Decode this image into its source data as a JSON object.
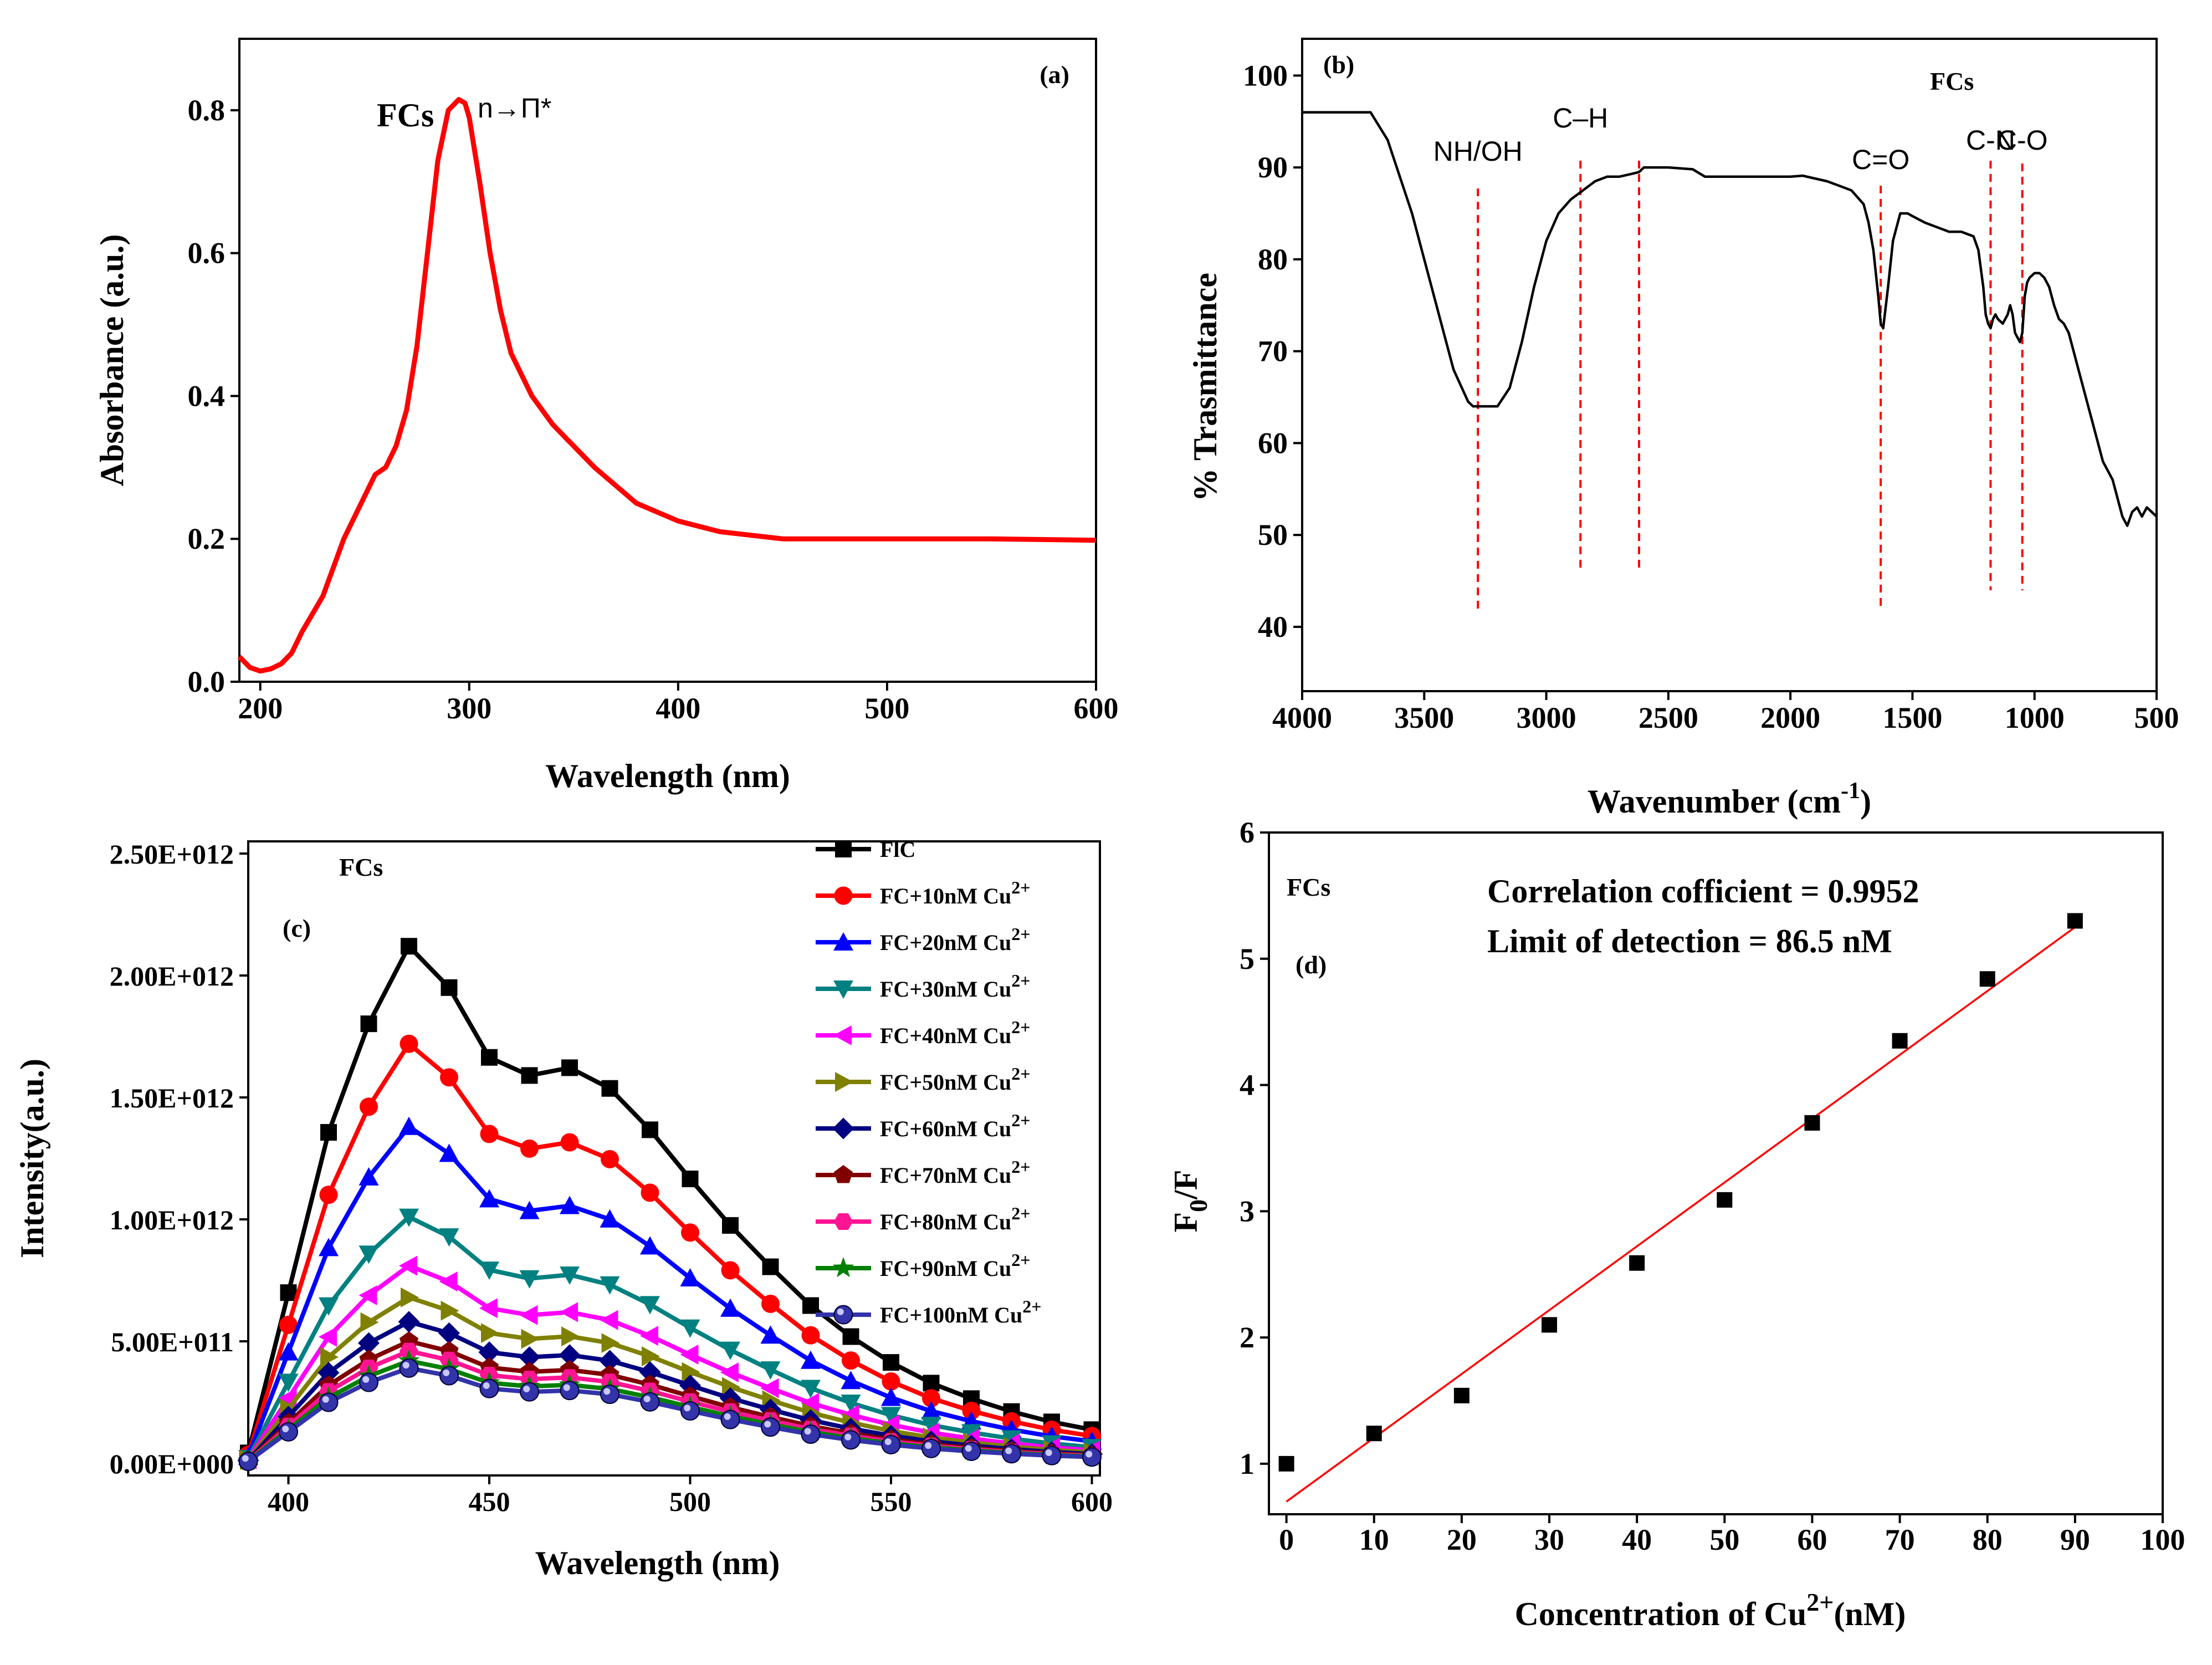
{
  "chart_data": [
    {
      "type": "line",
      "panel": "(a)",
      "title": "",
      "sample_label": "FCs",
      "peak_label": "n→Π*",
      "xlabel": "Wavelength (nm)",
      "ylabel": "Absorbance (a.u.)",
      "xlim": [
        190,
        600
      ],
      "ylim": [
        0,
        0.9
      ],
      "xticks": [
        200,
        300,
        400,
        500,
        600
      ],
      "yticks": [
        0.0,
        0.2,
        0.4,
        0.6,
        0.8
      ],
      "xtick_labels": [
        "200",
        "300",
        "400",
        "500",
        "600"
      ],
      "ytick_labels": [
        "0.0",
        "0.2",
        "0.4",
        "0.6",
        "0.8"
      ],
      "color": "#ff0000",
      "series": [
        {
          "name": "FCs",
          "x": [
            190,
            195,
            200,
            205,
            210,
            215,
            220,
            230,
            240,
            250,
            255,
            260,
            265,
            270,
            275,
            280,
            285,
            290,
            295,
            298,
            300,
            305,
            310,
            315,
            320,
            330,
            340,
            350,
            360,
            380,
            400,
            420,
            450,
            500,
            550,
            600
          ],
          "y": [
            0.035,
            0.02,
            0.015,
            0.018,
            0.025,
            0.04,
            0.07,
            0.12,
            0.2,
            0.26,
            0.29,
            0.3,
            0.33,
            0.38,
            0.47,
            0.6,
            0.73,
            0.8,
            0.815,
            0.81,
            0.79,
            0.7,
            0.6,
            0.52,
            0.46,
            0.4,
            0.36,
            0.33,
            0.3,
            0.25,
            0.225,
            0.21,
            0.2,
            0.2,
            0.2,
            0.198
          ]
        }
      ]
    },
    {
      "type": "line",
      "panel": "(b)",
      "title": "",
      "sample_label": "FCs",
      "xlabel": "Wavenumber (cm",
      "xlabel_sup": "-1",
      "xlabel_end": ")",
      "ylabel": "% Trasmittance",
      "xlim": [
        4000,
        500
      ],
      "ylim": [
        33,
        104
      ],
      "xticks": [
        4000,
        3500,
        3000,
        2500,
        2000,
        1500,
        1000,
        500
      ],
      "yticks": [
        40,
        50,
        60,
        70,
        80,
        90,
        100
      ],
      "xtick_labels": [
        "4000",
        "3500",
        "3000",
        "2500",
        "2000",
        "1500",
        "1000",
        "500"
      ],
      "ytick_labels": [
        "40",
        "50",
        "60",
        "70",
        "80",
        "90",
        "100"
      ],
      "color": "#000000",
      "annotations": [
        {
          "label": "NH/OH",
          "x": 3280
        },
        {
          "label": "C–H",
          "x": 2860
        },
        {
          "label": "",
          "x": 2620
        },
        {
          "label": "C=O",
          "x": 1630
        },
        {
          "label": "C-N",
          "x": 1180
        },
        {
          "label": "C-O",
          "x": 1050
        }
      ],
      "series": [
        {
          "name": "FCs",
          "x": [
            4000,
            3900,
            3800,
            3720,
            3650,
            3550,
            3450,
            3380,
            3320,
            3300,
            3260,
            3200,
            3150,
            3100,
            3050,
            3000,
            2950,
            2900,
            2850,
            2800,
            2750,
            2700,
            2650,
            2620,
            2600,
            2500,
            2400,
            2350,
            2300,
            2200,
            2100,
            2000,
            1950,
            1900,
            1850,
            1800,
            1750,
            1700,
            1680,
            1660,
            1640,
            1630,
            1620,
            1600,
            1580,
            1550,
            1520,
            1500,
            1450,
            1400,
            1350,
            1300,
            1250,
            1230,
            1210,
            1200,
            1190,
            1180,
            1170,
            1160,
            1150,
            1130,
            1110,
            1100,
            1090,
            1080,
            1060,
            1050,
            1040,
            1030,
            1020,
            1000,
            980,
            960,
            940,
            920,
            900,
            880,
            860,
            840,
            820,
            800,
            780,
            760,
            740,
            720,
            700,
            680,
            660,
            640,
            620,
            600,
            580,
            560,
            540,
            520,
            500
          ],
          "y": [
            96,
            96,
            96,
            96,
            93,
            85,
            75,
            68,
            64.5,
            64,
            64,
            64,
            66,
            71,
            77,
            82,
            85,
            86.5,
            87.5,
            88.5,
            89,
            89,
            89.3,
            89.5,
            90,
            90,
            89.8,
            89,
            89,
            89,
            89,
            89,
            89.1,
            88.8,
            88.5,
            88,
            87.5,
            86,
            84,
            81,
            76,
            73,
            72.5,
            77,
            82,
            85,
            85,
            84.7,
            84,
            83.5,
            83,
            83,
            82.5,
            81,
            77,
            74,
            73,
            72.5,
            73.5,
            74,
            73.5,
            73,
            74,
            75,
            74,
            72,
            71,
            72,
            76,
            77.5,
            78,
            78.5,
            78.5,
            78,
            77,
            75,
            73.5,
            73,
            72,
            70,
            68,
            66,
            64,
            62,
            60,
            58,
            57,
            56,
            54,
            52,
            51,
            52.5,
            53,
            52,
            53,
            52.5,
            52
          ]
        }
      ]
    },
    {
      "type": "line",
      "panel": "(c)",
      "title": "",
      "sample_label": "FCs",
      "xlabel": "Wavelength (nm)",
      "ylabel": "Intensity(a.u.)",
      "xlim": [
        390,
        602
      ],
      "ylim": [
        -50000000000.0,
        2550000000000.0
      ],
      "xticks": [
        400,
        450,
        500,
        550,
        600
      ],
      "yticks": [
        0,
        500000000000.0,
        1000000000000.0,
        1500000000000.0,
        2000000000000.0,
        2500000000000.0
      ],
      "xtick_labels": [
        "400",
        "450",
        "500",
        "550",
        "600"
      ],
      "ytick_labels": [
        "0.00E+000",
        "5.00E+011",
        "1.00E+012",
        "1.50E+012",
        "2.00E+012",
        "2.50E+012"
      ],
      "x": [
        390,
        400,
        410,
        420,
        430,
        440,
        450,
        460,
        470,
        480,
        490,
        500,
        510,
        520,
        530,
        540,
        550,
        560,
        570,
        580,
        590,
        600
      ],
      "base_shape": [
        0.02,
        0.33,
        0.64,
        0.85,
        1.0,
        0.92,
        0.785,
        0.75,
        0.765,
        0.725,
        0.645,
        0.55,
        0.46,
        0.38,
        0.305,
        0.245,
        0.195,
        0.155,
        0.125,
        0.1,
        0.08,
        0.065
      ],
      "series": [
        {
          "name": "FlC",
          "label_main": "FlC",
          "label_sup": "",
          "peak": 2120000000000.0,
          "color": "#000000",
          "marker": "square"
        },
        {
          "name": "FC+10nM Cu2+",
          "label_main": "FC+10nM Cu",
          "label_sup": "2+",
          "peak": 1720000000000.0,
          "color": "#ff0000",
          "marker": "circle"
        },
        {
          "name": "FC+20nM Cu2+",
          "label_main": "FC+20nM Cu",
          "label_sup": "2+",
          "peak": 1380000000000.0,
          "color": "#0000ff",
          "marker": "triangle-up"
        },
        {
          "name": "FC+30nM Cu2+",
          "label_main": "FC+30nM Cu",
          "label_sup": "2+",
          "peak": 1010000000000.0,
          "color": "#008080",
          "marker": "triangle-down"
        },
        {
          "name": "FC+40nM Cu2+",
          "label_main": "FC+40nM Cu",
          "label_sup": "2+",
          "peak": 810000000000.0,
          "color": "#ff00ff",
          "marker": "triangle-left"
        },
        {
          "name": "FC+50nM Cu2+",
          "label_main": "FC+50nM Cu",
          "label_sup": "2+",
          "peak": 680000000000.0,
          "color": "#808000",
          "marker": "triangle-right"
        },
        {
          "name": "FC+60nM Cu2+",
          "label_main": "FC+60nM Cu",
          "label_sup": "2+",
          "peak": 580000000000.0,
          "color": "#000080",
          "marker": "diamond"
        },
        {
          "name": "FC+70nM Cu2+",
          "label_main": "FC+70nM Cu",
          "label_sup": "2+",
          "peak": 500000000000.0,
          "color": "#800000",
          "marker": "pentagon"
        },
        {
          "name": "FC+80nM Cu2+",
          "label_main": "FC+80nM Cu",
          "label_sup": "2+",
          "peak": 460000000000.0,
          "color": "#ff1493",
          "marker": "hexagon"
        },
        {
          "name": "FC+90nM Cu2+",
          "label_main": "FC+90nM Cu",
          "label_sup": "2+",
          "peak": 420000000000.0,
          "color": "#008000",
          "marker": "star"
        },
        {
          "name": "FC+100nM Cu2+",
          "label_main": "FC+100nM Cu",
          "label_sup": "2+",
          "peak": 390000000000.0,
          "color": "#3333aa",
          "marker": "sphere"
        }
      ]
    },
    {
      "type": "scatter",
      "panel": "(d)",
      "title": "",
      "sample_label": "FCs",
      "annotation_1": "Correlation cofficient = 0.9952",
      "annotation_2": "Limit of detection = 86.5 nM",
      "xlabel": "Concentration of Cu",
      "xlabel_sup": "2+",
      "xlabel_end": "(nM)",
      "ylabel": "F",
      "ylabel_sub": "0",
      "ylabel_end": "/F",
      "xlim": [
        -2,
        100
      ],
      "ylim": [
        0.6,
        6
      ],
      "xticks": [
        0,
        10,
        20,
        30,
        40,
        50,
        60,
        70,
        80,
        90,
        100
      ],
      "yticks": [
        1,
        2,
        3,
        4,
        5,
        6
      ],
      "xtick_labels": [
        "0",
        "10",
        "20",
        "30",
        "40",
        "50",
        "60",
        "70",
        "80",
        "90",
        "100"
      ],
      "ytick_labels": [
        "1",
        "2",
        "3",
        "4",
        "5",
        "6"
      ],
      "points": {
        "x": [
          0,
          10,
          20,
          30,
          40,
          50,
          60,
          70,
          80,
          90
        ],
        "y": [
          1.0,
          1.24,
          1.54,
          2.1,
          2.59,
          3.09,
          3.7,
          4.35,
          4.84,
          5.3
        ]
      },
      "fit": {
        "x": [
          0,
          90
        ],
        "y": [
          0.7,
          5.25
        ],
        "color": "#ff0000"
      }
    }
  ]
}
